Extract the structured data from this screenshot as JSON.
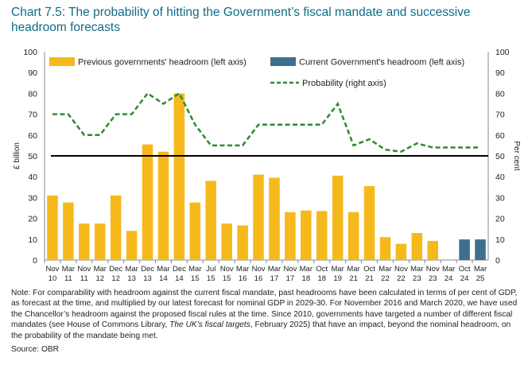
{
  "title": "Chart 7.5: The probability of hitting the Government’s fiscal mandate and successive headroom forecasts",
  "note": {
    "part1": "Note: For comparability with headroom against the current fiscal mandate, past headrooms have been calculated in terms of per cent of GDP, as forecast at the time, and multiplied by our latest forecast for nominal GDP in 2029-30. For November 2016 and March 2020, we have used the Chancellor’s headroom against the proposed fiscal rules at the time. Since 2010, governments have targeted a number of different fiscal mandates (see House of Commons Library, ",
    "citation": "The UK’s fiscal targets",
    "part2": ", February 2025) that have an impact, beyond the nominal headroom, on the probability of the mandate being met."
  },
  "source": "Source: OBR",
  "chart_data": {
    "type": "bar",
    "categories": [
      {
        "m": "Nov",
        "y": "10"
      },
      {
        "m": "Mar",
        "y": "11"
      },
      {
        "m": "Nov",
        "y": "11"
      },
      {
        "m": "Mar",
        "y": "12"
      },
      {
        "m": "Dec",
        "y": "12"
      },
      {
        "m": "Mar",
        "y": "13"
      },
      {
        "m": "Dec",
        "y": "13"
      },
      {
        "m": "Mar",
        "y": "14"
      },
      {
        "m": "Dec",
        "y": "14"
      },
      {
        "m": "Mar",
        "y": "15"
      },
      {
        "m": "Jul",
        "y": "15"
      },
      {
        "m": "Nov",
        "y": "15"
      },
      {
        "m": "Mar",
        "y": "16"
      },
      {
        "m": "Nov",
        "y": "16"
      },
      {
        "m": "Mar",
        "y": "17"
      },
      {
        "m": "Nov",
        "y": "17"
      },
      {
        "m": "Mar",
        "y": "18"
      },
      {
        "m": "Oct",
        "y": "18"
      },
      {
        "m": "Mar",
        "y": "19"
      },
      {
        "m": "Mar",
        "y": "21"
      },
      {
        "m": "Oct",
        "y": "21"
      },
      {
        "m": "Mar",
        "y": "22"
      },
      {
        "m": "Nov",
        "y": "22"
      },
      {
        "m": "Mar",
        "y": "23"
      },
      {
        "m": "Nov",
        "y": "23"
      },
      {
        "m": "Mar",
        "y": "24"
      },
      {
        "m": "Oct",
        "y": "24"
      },
      {
        "m": "Mar",
        "y": "25"
      }
    ],
    "series": [
      {
        "name": "Previous governments' headroom (left axis)",
        "kind": "bar",
        "axis": "left",
        "color": "#f6b91c",
        "values": [
          31,
          27.6,
          17.5,
          17.5,
          31,
          14,
          55.5,
          52,
          80,
          27.6,
          38,
          17.5,
          16.6,
          41,
          39.5,
          23,
          23.8,
          23.5,
          40.5,
          23,
          35.5,
          11,
          7.8,
          13,
          9.2,
          null,
          null,
          null
        ]
      },
      {
        "name": "Current Government's headroom (left axis)",
        "kind": "bar",
        "axis": "left",
        "color": "#3e6f8e",
        "values": [
          null,
          null,
          null,
          null,
          null,
          null,
          null,
          null,
          null,
          null,
          null,
          null,
          null,
          null,
          null,
          null,
          null,
          null,
          null,
          null,
          null,
          null,
          null,
          null,
          null,
          null,
          9.9,
          9.9
        ]
      },
      {
        "name": "Probability (right axis)",
        "kind": "line",
        "axis": "right",
        "color": "#2e8b2e",
        "dashed": true,
        "values": [
          70,
          70,
          60,
          60,
          70,
          70,
          80,
          75,
          80,
          65,
          55,
          55,
          55,
          65,
          65,
          65,
          65,
          65,
          75,
          55,
          58,
          53,
          52,
          56,
          54,
          54,
          54,
          54
        ]
      }
    ],
    "reference_line": {
      "value": 50,
      "axis": "right"
    },
    "ylabel": "£ billion",
    "y2label": "Per cent",
    "ylim": [
      0,
      100
    ],
    "y2lim": [
      0,
      100
    ],
    "yticks": [
      0,
      10,
      20,
      30,
      40,
      50,
      60,
      70,
      80,
      90,
      100
    ],
    "legend_placement": "top"
  }
}
